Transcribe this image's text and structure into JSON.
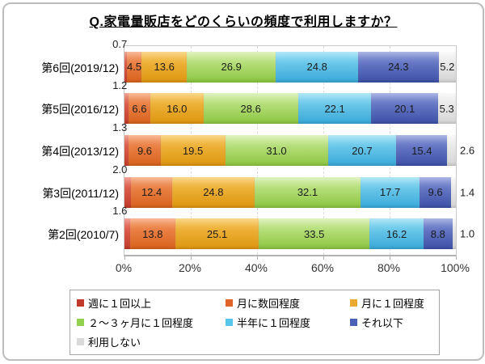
{
  "title": "Q.家電量販店をどのくらいの頻度で利用しますか？",
  "chart_data": {
    "type": "bar",
    "orientation": "horizontal-stacked",
    "title": "Q.家電量販店をどのくらいの頻度で利用しますか？",
    "categories": [
      "第6回(2019/12)",
      "第5回(2016/12)",
      "第4回(2013/12)",
      "第3回(2011/12)",
      "第2回(2010/7)"
    ],
    "series": [
      {
        "key": "weekly-or-more",
        "name": "週に１回以上",
        "color": "#c0392b",
        "grad": [
          "#ea6e5c",
          "#c33826"
        ],
        "values": [
          0.7,
          1.2,
          1.3,
          2.0,
          1.6
        ]
      },
      {
        "key": "few-times-month",
        "name": "月に数回程度",
        "color": "#e2632a",
        "grad": [
          "#f4915a",
          "#d8611c"
        ],
        "values": [
          4.5,
          6.6,
          9.6,
          12.4,
          13.8
        ]
      },
      {
        "key": "once-a-month",
        "name": "月に１回程度",
        "color": "#eaa92f",
        "grad": [
          "#f6c04c",
          "#dd9510"
        ],
        "values": [
          13.6,
          16.0,
          19.5,
          24.8,
          25.1
        ]
      },
      {
        "key": "once-2-3-months",
        "name": "２～３ヶ月に１回程度",
        "color": "#92d050",
        "grad": [
          "#cdec9a",
          "#8bc53f"
        ],
        "values": [
          26.9,
          28.6,
          31.0,
          32.1,
          33.5
        ]
      },
      {
        "key": "once-half-year",
        "name": "半年に１回程度",
        "color": "#58c5ea",
        "grad": [
          "#86d9f3",
          "#38a8d8"
        ],
        "values": [
          24.8,
          22.1,
          20.7,
          17.7,
          16.2
        ]
      },
      {
        "key": "less-often",
        "name": "それ以下",
        "color": "#4a5fb5",
        "grad": [
          "#7b8bd4",
          "#3c50a7"
        ],
        "values": [
          24.3,
          20.1,
          15.4,
          9.6,
          8.8
        ]
      },
      {
        "key": "never-use",
        "name": "利用しない",
        "color": "#d9d9d9",
        "grad": [
          "#f5f5f5",
          "#d5d5d5"
        ],
        "values": [
          5.2,
          5.3,
          2.6,
          1.4,
          1.0
        ]
      }
    ],
    "x_ticks": [
      "0%",
      "20%",
      "40%",
      "60%",
      "80%",
      "100%"
    ],
    "xlim": [
      0,
      100
    ],
    "grid": true,
    "legend_position": "bottom",
    "label_text_color": "#1c1c1c",
    "outside_label_threshold": 3.5
  }
}
